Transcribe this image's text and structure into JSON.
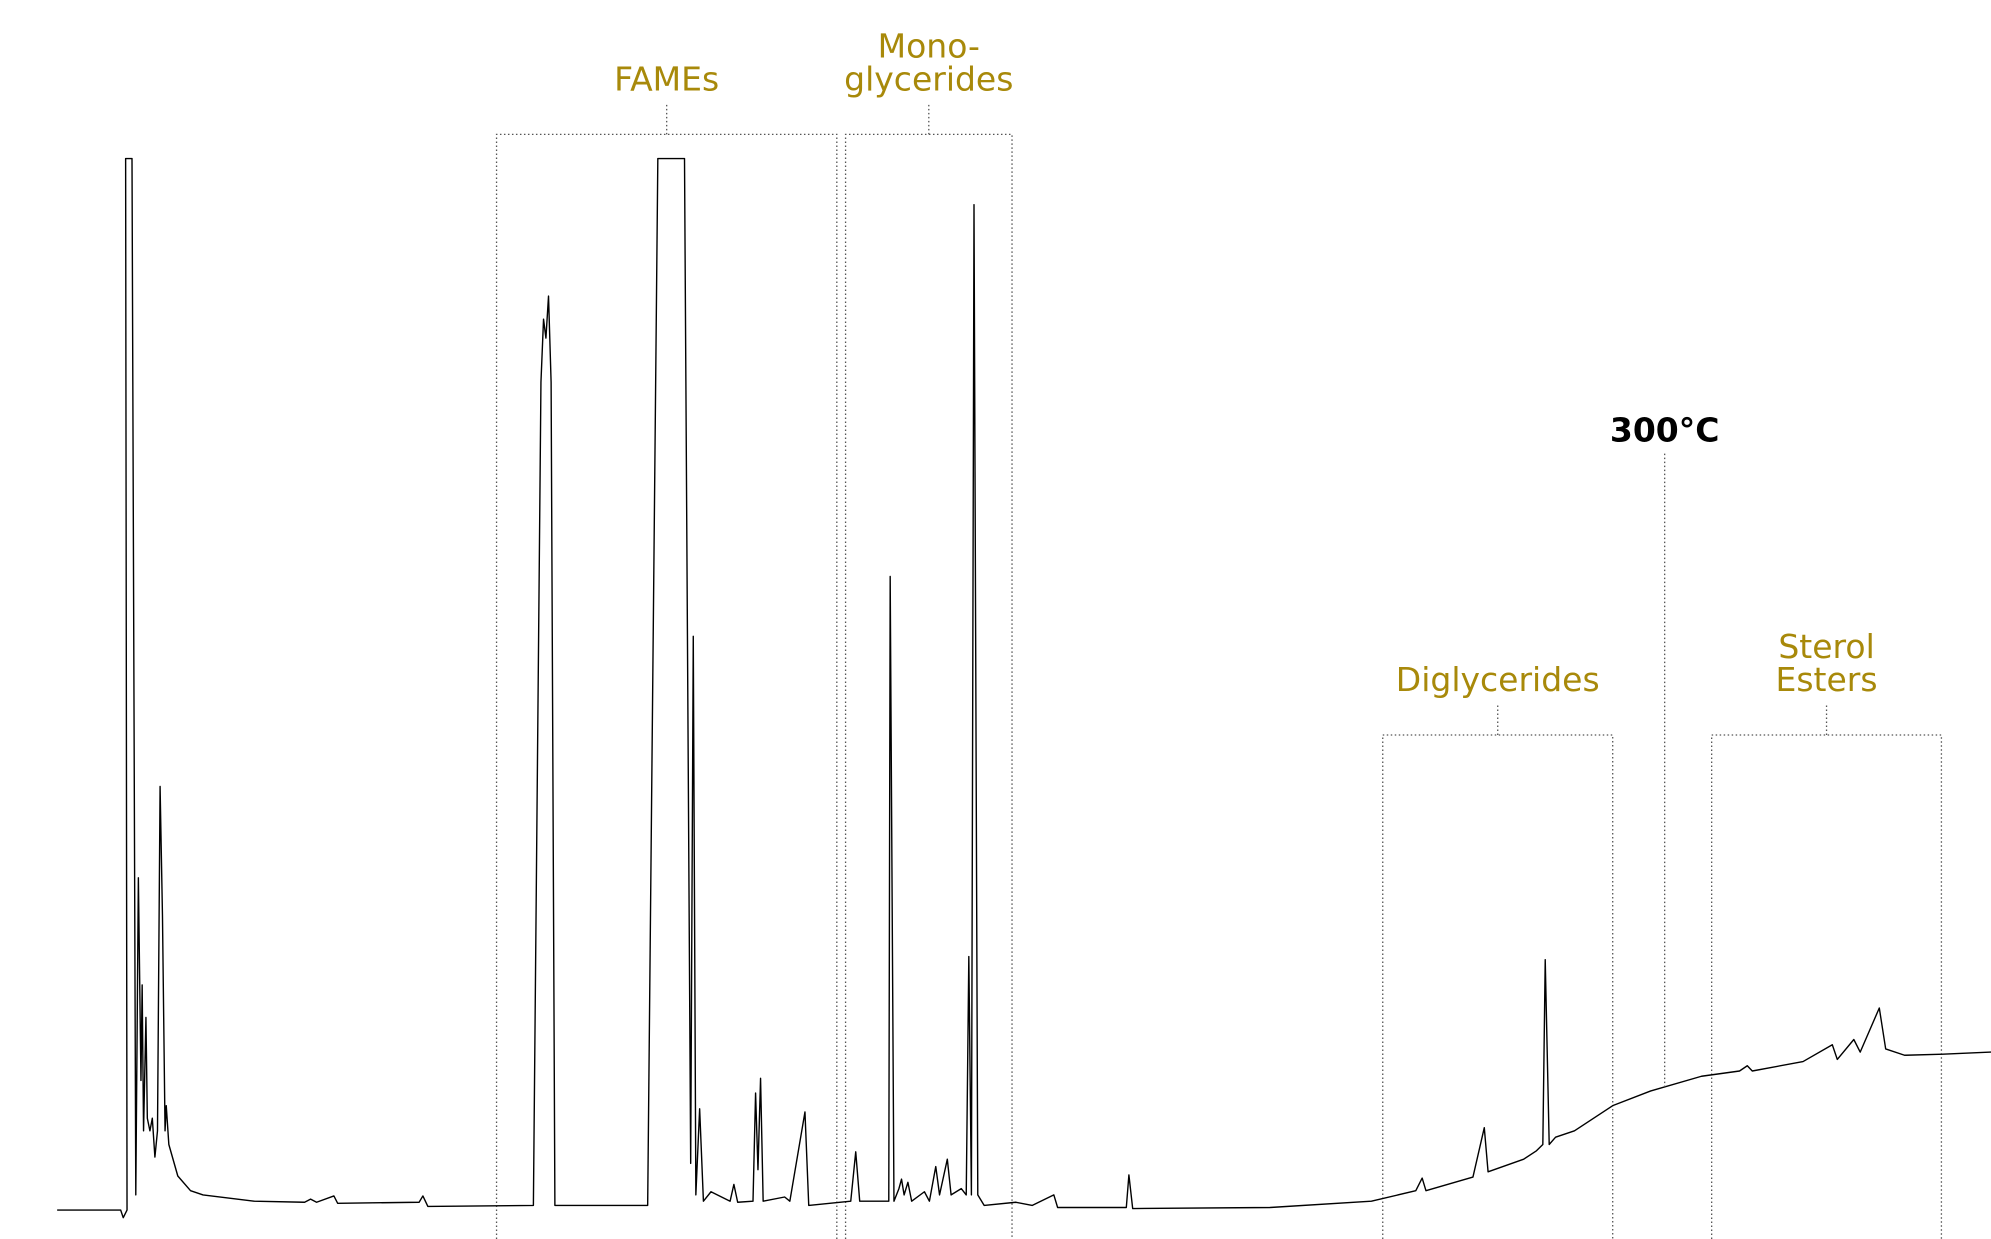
{
  "chart_data": {
    "type": "line",
    "xlim": [
      0,
      100
    ],
    "ylim": [
      -3,
      115
    ],
    "color": "#000000",
    "x": [
      2.87,
      6.06,
      6.19,
      6.38,
      6.31,
      6.63,
      6.82,
      6.95,
      7.08,
      7.14,
      7.21,
      7.33,
      7.4,
      7.53,
      7.65,
      7.78,
      7.91,
      8.04,
      8.16,
      8.29,
      8.35,
      8.48,
      8.93,
      9.57,
      10.2,
      12.76,
      15.3,
      15.6,
      15.9,
      16.77,
      16.96,
      21.05,
      21.24,
      21.49,
      26.79,
      27.17,
      27.3,
      27.42,
      27.55,
      27.68,
      27.87,
      32.53,
      33.04,
      34.38,
      34.69,
      34.82,
      34.95,
      35.14,
      35.33,
      35.71,
      36.67,
      36.86,
      37.05,
      37.82,
      37.95,
      38.07,
      38.2,
      38.33,
      39.41,
      39.67,
      40.43,
      40.62,
      42.73,
      42.98,
      43.18,
      44.64,
      44.71,
      44.9,
      45.15,
      45.28,
      45.41,
      45.6,
      45.79,
      46.43,
      46.68,
      47.0,
      47.19,
      47.58,
      47.77,
      48.28,
      48.53,
      48.66,
      48.79,
      48.92,
      49.11,
      49.43,
      51.02,
      51.85,
      52.93,
      53.12,
      56.57,
      56.7,
      56.89,
      63.78,
      68.88,
      71.11,
      71.43,
      71.62,
      73.98,
      74.55,
      74.74,
      76.53,
      77.17,
      77.49,
      77.61,
      77.81,
      78.13,
      79.08,
      81.0,
      82.91,
      85.46,
      87.37,
      87.76,
      88.01,
      90.56,
      92.03,
      92.28,
      93.11,
      93.43,
      94.39,
      94.71,
      95.66,
      97.58,
      100
    ],
    "values": [
      -0.24,
      -0.24,
      -0.97,
      -0.24,
      99.9,
      99.9,
      1.2,
      31.4,
      12.1,
      21.2,
      7.3,
      18.1,
      8.5,
      7.3,
      8.5,
      4.8,
      7.3,
      40.1,
      27.8,
      7.3,
      9.7,
      6.0,
      3.0,
      1.6,
      1.2,
      0.6,
      0.5,
      0.8,
      0.5,
      1.1,
      0.4,
      0.5,
      1.1,
      0.1,
      0.2,
      78.6,
      84.6,
      82.8,
      86.8,
      78.6,
      0.2,
      0.2,
      99.9,
      99.9,
      4.2,
      54.4,
      1.2,
      9.4,
      0.6,
      1.5,
      0.6,
      2.2,
      0.5,
      0.6,
      10.9,
      3.6,
      12.3,
      0.6,
      1.0,
      0.6,
      9.1,
      0.2,
      0.6,
      5.3,
      0.6,
      0.6,
      60.1,
      0.6,
      1.8,
      2.7,
      1.2,
      2.4,
      0.6,
      1.5,
      0.6,
      3.9,
      1.2,
      4.6,
      1.2,
      1.8,
      1.2,
      23.9,
      1.2,
      95.5,
      1.2,
      0.2,
      0.5,
      0.2,
      1.2,
      0,
      0,
      3.1,
      -0.1,
      0,
      0.6,
      1.6,
      2.8,
      1.6,
      2.9,
      7.6,
      3.4,
      4.6,
      5.4,
      6.0,
      23.6,
      6.0,
      6.7,
      7.3,
      9.7,
      11.1,
      12.5,
      13.0,
      13.5,
      13.0,
      13.9,
      15.5,
      14.1,
      16.0,
      14.8,
      19.0,
      15.1,
      14.5,
      14.6,
      14.8
    ],
    "regions": [
      {
        "label": [
          "FAMEs"
        ],
        "x": [
          24.94,
          42.03
        ],
        "y": 102.2
      },
      {
        "label": [
          "Mono-",
          "glycerides"
        ],
        "x": [
          42.47,
          50.83
        ],
        "y": 102.2
      },
      {
        "label": [
          "Diglycerides"
        ],
        "x": [
          69.45,
          81.0
        ],
        "y": 45.0
      },
      {
        "label": [
          "Sterol",
          "Esters"
        ],
        "x": [
          85.97,
          97.51
        ],
        "y": 45.0
      }
    ],
    "markers": [
      {
        "label": "300°C",
        "x": 83.61,
        "y": 71.8
      }
    ]
  }
}
